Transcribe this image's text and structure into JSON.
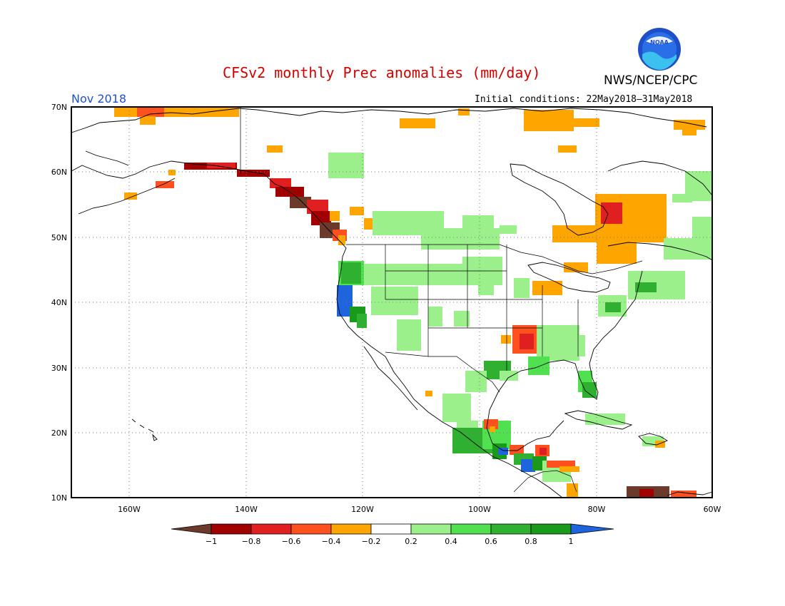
{
  "title": "CFSv2 monthly Prec anomalies (mm/day)",
  "agency": "NWS/NCEP/CPC",
  "logo_text": "NOAA",
  "month_label": "Nov 2018",
  "initial_conditions": "Initial conditions: 22May2018–31May2018",
  "lon_ticks": [
    "160W",
    "140W",
    "120W",
    "100W",
    "80W",
    "60W"
  ],
  "lat_ticks": [
    "70N",
    "60N",
    "50N",
    "40N",
    "30N",
    "20N",
    "10N"
  ],
  "colorbar": {
    "labels": [
      "−1",
      "−0.8",
      "−0.6",
      "−0.4",
      "−0.2",
      "0.2",
      "0.4",
      "0.6",
      "0.8",
      "1"
    ],
    "colors": [
      "#6b3a2a",
      "#a00000",
      "#e02020",
      "#ff5020",
      "#ffa500",
      "#ffffff",
      "#9cf08c",
      "#50e050",
      "#30b030",
      "#1a9a1a",
      "#1e64dc"
    ]
  },
  "anomaly_colors": {
    "orange": "#ffa500",
    "red_orange": "#ff5020",
    "red": "#e02020",
    "dark_red": "#a00000",
    "brown": "#6b3a2a",
    "light_green": "#9cf08c",
    "green": "#50e050",
    "mid_green": "#30b030",
    "dark_green": "#1a9a1a",
    "blue": "#1e64dc"
  }
}
